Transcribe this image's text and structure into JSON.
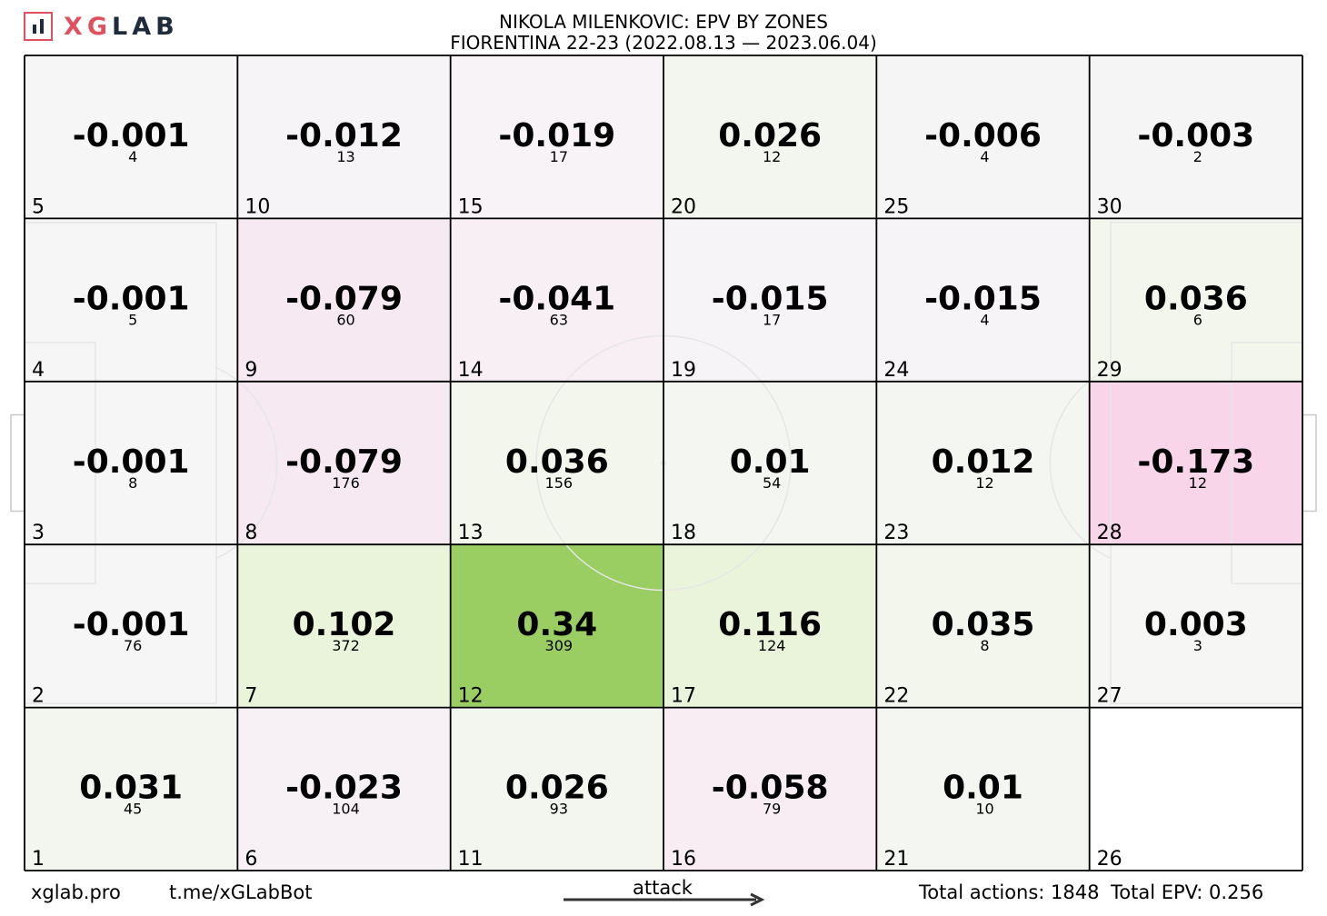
{
  "header": {
    "logo_text_xg": "XG",
    "logo_text_lab": "LAB",
    "title_line1": "NIKOLA MILENKOVIC: EPV BY ZONES",
    "title_line2": "FIORENTINA 22-23 (2022.08.13 — 2023.06.04)"
  },
  "footer": {
    "site": "xglab.pro",
    "bot": "t.me/xGLabBot",
    "attack_label": "attack",
    "total_actions": "Total actions: 1848",
    "total_epv": "Total EPV: 0.256"
  },
  "colors": {
    "positive_max": "#9bce62",
    "negative_max": "#f8d5e9",
    "neutral": "#f7f7f7",
    "grid_line": "#000000",
    "pitch_line": "#e6e6e6"
  },
  "chart_data": {
    "type": "heatmap",
    "title": "NIKOLA MILENKOVIC: EPV BY ZONES",
    "subtitle": "FIORENTINA 22-23 (2022.08.13 — 2023.06.04)",
    "columns": 6,
    "rows": 5,
    "direction": "attack left to right",
    "zones": [
      {
        "zone": 1,
        "epv": "0.031",
        "actions": "45",
        "color": "#f3f6ee"
      },
      {
        "zone": 2,
        "epv": "-0.001",
        "actions": "76",
        "color": "#f6f6f6"
      },
      {
        "zone": 3,
        "epv": "-0.001",
        "actions": "8",
        "color": "#f6f6f6"
      },
      {
        "zone": 4,
        "epv": "-0.001",
        "actions": "5",
        "color": "#f6f6f6"
      },
      {
        "zone": 5,
        "epv": "-0.001",
        "actions": "4",
        "color": "#f6f6f6"
      },
      {
        "zone": 6,
        "epv": "-0.023",
        "actions": "104",
        "color": "#f7f1f5"
      },
      {
        "zone": 7,
        "epv": "0.102",
        "actions": "372",
        "color": "#e9f4db"
      },
      {
        "zone": 8,
        "epv": "-0.079",
        "actions": "176",
        "color": "#f6e9f1"
      },
      {
        "zone": 9,
        "epv": "-0.079",
        "actions": "60",
        "color": "#f6e9f1"
      },
      {
        "zone": 10,
        "epv": "-0.012",
        "actions": "13",
        "color": "#f6f4f6"
      },
      {
        "zone": 11,
        "epv": "0.026",
        "actions": "93",
        "color": "#f3f6ef"
      },
      {
        "zone": 12,
        "epv": "0.34",
        "actions": "309",
        "color": "#9bce62"
      },
      {
        "zone": 13,
        "epv": "0.036",
        "actions": "156",
        "color": "#f2f6ec"
      },
      {
        "zone": 14,
        "epv": "-0.041",
        "actions": "63",
        "color": "#f7eff4"
      },
      {
        "zone": 15,
        "epv": "-0.019",
        "actions": "17",
        "color": "#f7f3f6"
      },
      {
        "zone": 16,
        "epv": "-0.058",
        "actions": "79",
        "color": "#f7edf3"
      },
      {
        "zone": 17,
        "epv": "0.116",
        "actions": "124",
        "color": "#e9f4da"
      },
      {
        "zone": 18,
        "epv": "0.01",
        "actions": "54",
        "color": "#f4f6f1"
      },
      {
        "zone": 19,
        "epv": "-0.015",
        "actions": "17",
        "color": "#f6f4f6"
      },
      {
        "zone": 20,
        "epv": "0.026",
        "actions": "12",
        "color": "#f3f6ef"
      },
      {
        "zone": 21,
        "epv": "0.01",
        "actions": "10",
        "color": "#f4f6f1"
      },
      {
        "zone": 22,
        "epv": "0.035",
        "actions": "8",
        "color": "#f2f6ec"
      },
      {
        "zone": 23,
        "epv": "0.012",
        "actions": "12",
        "color": "#f4f6f1"
      },
      {
        "zone": 24,
        "epv": "-0.015",
        "actions": "4",
        "color": "#f6f4f6"
      },
      {
        "zone": 25,
        "epv": "-0.006",
        "actions": "4",
        "color": "#f6f5f6"
      },
      {
        "zone": 26,
        "epv": "",
        "actions": "",
        "color": "#ffffff"
      },
      {
        "zone": 27,
        "epv": "0.003",
        "actions": "3",
        "color": "#f6f6f4"
      },
      {
        "zone": 28,
        "epv": "-0.173",
        "actions": "12",
        "color": "#f8d5e9"
      },
      {
        "zone": 29,
        "epv": "0.036",
        "actions": "6",
        "color": "#f2f6ec"
      },
      {
        "zone": 30,
        "epv": "-0.003",
        "actions": "2",
        "color": "#f6f5f6"
      }
    ],
    "totals": {
      "actions": 1848,
      "epv": 0.256
    }
  }
}
